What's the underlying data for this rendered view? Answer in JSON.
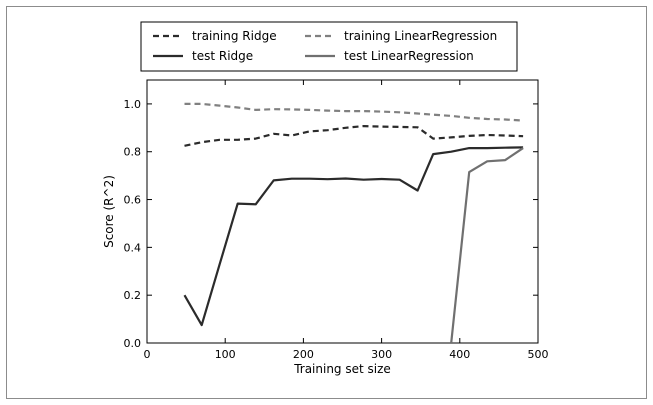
{
  "chart_data": {
    "type": "line",
    "title": "",
    "xlabel": "Training set size",
    "ylabel": "Score (R^2)",
    "xlim": [
      0,
      500
    ],
    "ylim": [
      0.0,
      1.1
    ],
    "xticks": [
      0,
      100,
      200,
      300,
      400,
      500
    ],
    "yticks": [
      0.0,
      0.2,
      0.4,
      0.6,
      0.8,
      1.0
    ],
    "xtick_labels": [
      "0",
      "100",
      "200",
      "300",
      "400",
      "500"
    ],
    "ytick_labels": [
      "0.0",
      "0.2",
      "0.4",
      "0.6",
      "0.8",
      "1.0"
    ],
    "legend_position": "top, outside plot, two columns",
    "series": [
      {
        "name": "training Ridge",
        "color": "#2b2b2b",
        "style": "dashed",
        "x": [
          48,
          70,
          93,
          116,
          139,
          162,
          185,
          208,
          231,
          254,
          277,
          300,
          323,
          346,
          366,
          389,
          412,
          435,
          458,
          481
        ],
        "y": [
          0.825,
          0.84,
          0.85,
          0.85,
          0.855,
          0.875,
          0.868,
          0.885,
          0.89,
          0.9,
          0.907,
          0.905,
          0.904,
          0.902,
          0.855,
          0.86,
          0.866,
          0.87,
          0.868,
          0.865
        ]
      },
      {
        "name": "test Ridge",
        "color": "#2b2b2b",
        "style": "solid",
        "x": [
          48,
          70,
          93,
          116,
          139,
          162,
          185,
          208,
          231,
          254,
          277,
          300,
          323,
          346,
          366,
          389,
          412,
          435,
          458,
          481
        ],
        "y": [
          0.2,
          0.075,
          0.33,
          0.583,
          0.58,
          0.68,
          0.687,
          0.687,
          0.685,
          0.688,
          0.683,
          0.686,
          0.683,
          0.638,
          0.79,
          0.8,
          0.815,
          0.815,
          0.817,
          0.818
        ]
      },
      {
        "name": "training LinearRegression",
        "color": "#808080",
        "style": "dashed",
        "x": [
          48,
          70,
          93,
          116,
          139,
          162,
          185,
          208,
          231,
          254,
          277,
          300,
          323,
          346,
          366,
          389,
          412,
          435,
          458,
          481
        ],
        "y": [
          1.0,
          1.0,
          0.993,
          0.985,
          0.975,
          0.978,
          0.977,
          0.975,
          0.972,
          0.97,
          0.97,
          0.968,
          0.965,
          0.96,
          0.955,
          0.95,
          0.942,
          0.937,
          0.935,
          0.93
        ]
      },
      {
        "name": "test LinearRegression",
        "color": "#707070",
        "style": "solid",
        "x": [
          389,
          412,
          435,
          458,
          481
        ],
        "y": [
          0.0,
          0.715,
          0.76,
          0.765,
          0.815
        ]
      }
    ],
    "legend_order": [
      "training Ridge",
      "training LinearRegression",
      "test Ridge",
      "test LinearRegression"
    ]
  }
}
